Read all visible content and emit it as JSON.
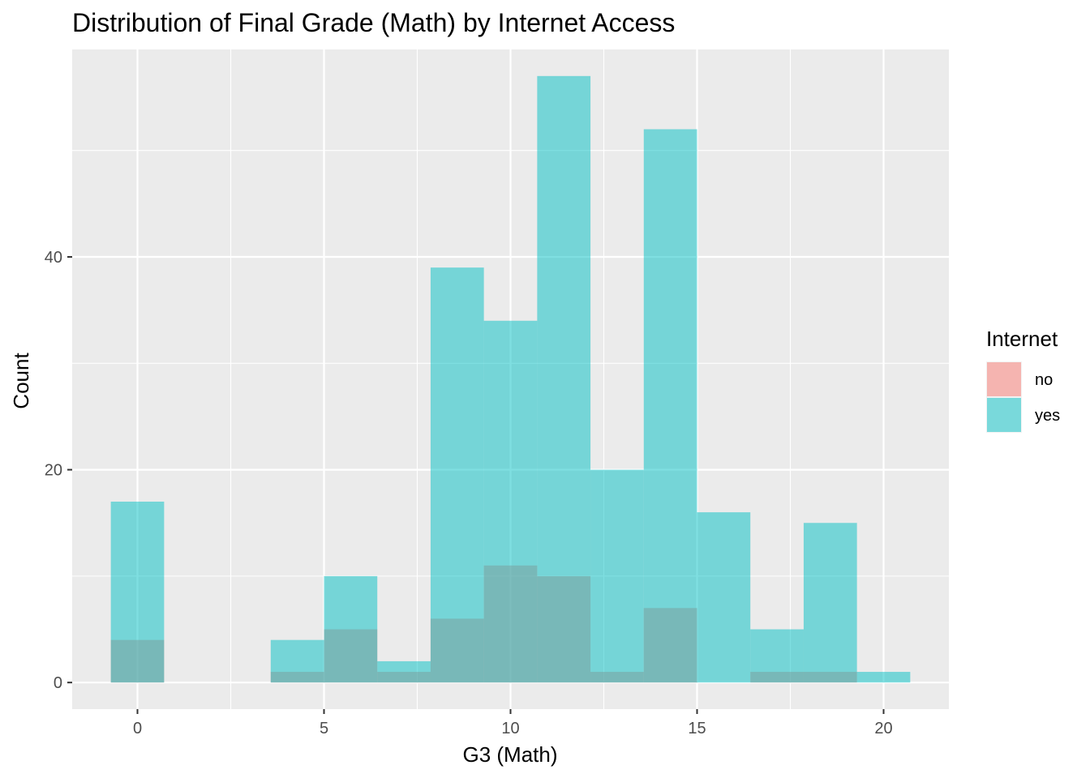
{
  "chart_data": {
    "type": "histogram",
    "title": "Distribution of Final Grade (Math) by Internet Access",
    "xlabel": "G3 (Math)",
    "ylabel": "Count",
    "xlim": [
      -1.75,
      21.75
    ],
    "ylim": [
      -2.5,
      59.5
    ],
    "x_ticks": [
      0,
      5,
      10,
      15,
      20
    ],
    "y_ticks": [
      0,
      20,
      40
    ],
    "grid": true,
    "legend": {
      "title": "Internet",
      "placement": "right"
    },
    "bin_width": 1.4286,
    "bin_centers": [
      0,
      1.4286,
      2.8571,
      4.2857,
      5.7143,
      7.1429,
      8.5714,
      10,
      11.4286,
      12.8571,
      14.2857,
      15.7143,
      17.1429,
      18.5714,
      20
    ],
    "series": [
      {
        "name": "no",
        "color": "#F8766D",
        "values": [
          4,
          0,
          0,
          1,
          5,
          1,
          6,
          11,
          10,
          1,
          7,
          0,
          1,
          1,
          0
        ]
      },
      {
        "name": "yes",
        "color": "#00BFC4",
        "values": [
          17,
          0,
          0,
          4,
          10,
          2,
          39,
          34,
          57,
          20,
          52,
          16,
          5,
          15,
          1
        ]
      }
    ]
  }
}
